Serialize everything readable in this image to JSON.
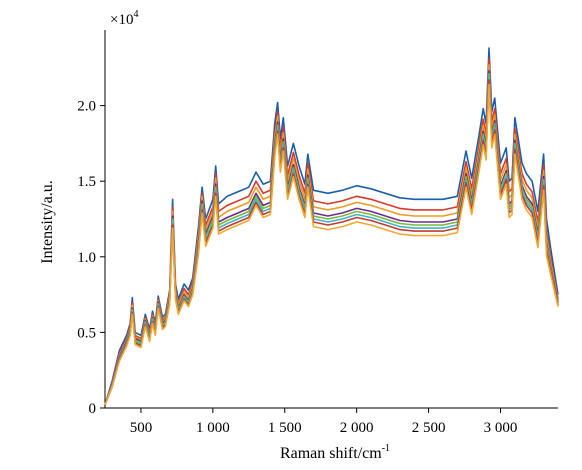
{
  "chart_data": {
    "type": "line",
    "title": "",
    "xlabel": "Raman shift/cm",
    "xlabel_sup": "-1",
    "ylabel": "Intensity/a.u.",
    "y_multiplier": "×10",
    "y_multiplier_exp": "4",
    "xlim": [
      250,
      3400
    ],
    "ylim": [
      0,
      2.5
    ],
    "x_ticks": [
      500,
      1000,
      1500,
      2000,
      2500,
      3000
    ],
    "x_tick_labels": [
      "500",
      "1 000",
      "1 500",
      "2 000",
      "2 500",
      "3 000"
    ],
    "y_ticks": [
      0,
      0.5,
      1.0,
      1.5,
      2.0
    ],
    "y_tick_labels": [
      "0",
      "0.5",
      "1.0",
      "1.5",
      "2.0"
    ],
    "grid": false,
    "legend": "none",
    "x": [
      250,
      300,
      350,
      400,
      425,
      440,
      460,
      500,
      530,
      560,
      580,
      600,
      620,
      650,
      670,
      700,
      720,
      740,
      760,
      800,
      830,
      860,
      900,
      925,
      950,
      1000,
      1020,
      1040,
      1100,
      1150,
      1200,
      1250,
      1300,
      1350,
      1400,
      1430,
      1450,
      1470,
      1490,
      1520,
      1560,
      1600,
      1640,
      1660,
      1700,
      1800,
      1900,
      2000,
      2100,
      2200,
      2300,
      2400,
      2500,
      2600,
      2700,
      2760,
      2800,
      2850,
      2880,
      2900,
      2920,
      2940,
      2960,
      3000,
      3040,
      3060,
      3080,
      3100,
      3150,
      3180,
      3220,
      3260,
      3300,
      3320,
      3350,
      3400
    ],
    "series": [
      {
        "color": "#1a5fae",
        "values": [
          0.02,
          0.18,
          0.38,
          0.48,
          0.56,
          0.73,
          0.5,
          0.48,
          0.62,
          0.52,
          0.64,
          0.56,
          0.74,
          0.6,
          0.62,
          0.78,
          1.38,
          0.82,
          0.72,
          0.82,
          0.78,
          0.86,
          1.2,
          1.46,
          1.25,
          1.38,
          1.6,
          1.35,
          1.4,
          1.42,
          1.44,
          1.46,
          1.56,
          1.48,
          1.5,
          1.88,
          2.02,
          1.78,
          1.92,
          1.6,
          1.75,
          1.6,
          1.48,
          1.68,
          1.44,
          1.42,
          1.44,
          1.47,
          1.45,
          1.42,
          1.39,
          1.38,
          1.38,
          1.38,
          1.4,
          1.7,
          1.52,
          1.8,
          1.98,
          1.88,
          2.38,
          1.96,
          2.05,
          1.62,
          1.72,
          1.5,
          1.52,
          1.92,
          1.62,
          1.55,
          1.5,
          1.3,
          1.68,
          1.25,
          1.05,
          0.75
        ]
      },
      {
        "color": "#d8392b",
        "values": [
          0.02,
          0.17,
          0.36,
          0.46,
          0.54,
          0.7,
          0.48,
          0.46,
          0.6,
          0.5,
          0.62,
          0.54,
          0.72,
          0.58,
          0.6,
          0.76,
          1.33,
          0.79,
          0.69,
          0.79,
          0.75,
          0.83,
          1.16,
          1.42,
          1.21,
          1.33,
          1.55,
          1.3,
          1.34,
          1.36,
          1.38,
          1.4,
          1.5,
          1.42,
          1.44,
          1.82,
          1.96,
          1.72,
          1.86,
          1.54,
          1.69,
          1.54,
          1.42,
          1.62,
          1.37,
          1.35,
          1.37,
          1.4,
          1.38,
          1.35,
          1.32,
          1.31,
          1.31,
          1.31,
          1.33,
          1.63,
          1.45,
          1.73,
          1.91,
          1.81,
          2.31,
          1.89,
          1.98,
          1.55,
          1.65,
          1.43,
          1.45,
          1.85,
          1.55,
          1.48,
          1.43,
          1.23,
          1.61,
          1.18,
          0.99,
          0.72
        ]
      },
      {
        "color": "#ee9a1f",
        "values": [
          0.02,
          0.16,
          0.35,
          0.45,
          0.53,
          0.68,
          0.47,
          0.45,
          0.59,
          0.49,
          0.61,
          0.53,
          0.71,
          0.57,
          0.59,
          0.75,
          1.3,
          0.78,
          0.68,
          0.77,
          0.73,
          0.81,
          1.13,
          1.4,
          1.18,
          1.3,
          1.52,
          1.26,
          1.3,
          1.32,
          1.34,
          1.36,
          1.46,
          1.38,
          1.4,
          1.78,
          1.93,
          1.68,
          1.82,
          1.5,
          1.65,
          1.5,
          1.38,
          1.58,
          1.33,
          1.31,
          1.33,
          1.36,
          1.34,
          1.31,
          1.28,
          1.27,
          1.27,
          1.27,
          1.29,
          1.59,
          1.41,
          1.69,
          1.87,
          1.77,
          2.27,
          1.85,
          1.94,
          1.51,
          1.61,
          1.39,
          1.41,
          1.81,
          1.51,
          1.44,
          1.39,
          1.19,
          1.57,
          1.14,
          0.96,
          0.71
        ]
      },
      {
        "color": "#6a2c91",
        "values": [
          0.02,
          0.16,
          0.34,
          0.44,
          0.52,
          0.66,
          0.46,
          0.44,
          0.58,
          0.48,
          0.6,
          0.52,
          0.7,
          0.56,
          0.58,
          0.73,
          1.27,
          0.76,
          0.66,
          0.75,
          0.71,
          0.79,
          1.1,
          1.37,
          1.15,
          1.27,
          1.48,
          1.23,
          1.26,
          1.28,
          1.3,
          1.32,
          1.42,
          1.34,
          1.36,
          1.74,
          1.89,
          1.64,
          1.78,
          1.46,
          1.61,
          1.46,
          1.34,
          1.54,
          1.29,
          1.27,
          1.29,
          1.32,
          1.3,
          1.27,
          1.24,
          1.23,
          1.23,
          1.23,
          1.25,
          1.55,
          1.37,
          1.65,
          1.83,
          1.73,
          2.23,
          1.81,
          1.9,
          1.47,
          1.57,
          1.35,
          1.37,
          1.77,
          1.47,
          1.4,
          1.35,
          1.15,
          1.53,
          1.1,
          0.93,
          0.7
        ]
      },
      {
        "color": "#7cb83a",
        "values": [
          0.02,
          0.15,
          0.33,
          0.43,
          0.51,
          0.65,
          0.45,
          0.43,
          0.57,
          0.47,
          0.59,
          0.51,
          0.69,
          0.55,
          0.57,
          0.72,
          1.25,
          0.75,
          0.65,
          0.74,
          0.7,
          0.78,
          1.08,
          1.35,
          1.13,
          1.25,
          1.46,
          1.21,
          1.24,
          1.26,
          1.28,
          1.3,
          1.4,
          1.32,
          1.34,
          1.72,
          1.87,
          1.62,
          1.76,
          1.44,
          1.59,
          1.44,
          1.32,
          1.52,
          1.27,
          1.25,
          1.27,
          1.3,
          1.28,
          1.25,
          1.22,
          1.21,
          1.21,
          1.21,
          1.23,
          1.53,
          1.35,
          1.63,
          1.81,
          1.71,
          2.21,
          1.79,
          1.88,
          1.45,
          1.55,
          1.33,
          1.35,
          1.75,
          1.45,
          1.38,
          1.33,
          1.13,
          1.51,
          1.08,
          0.92,
          0.69
        ]
      },
      {
        "color": "#3cb8c8",
        "values": [
          0.02,
          0.15,
          0.33,
          0.43,
          0.5,
          0.64,
          0.44,
          0.42,
          0.56,
          0.46,
          0.58,
          0.5,
          0.68,
          0.54,
          0.56,
          0.71,
          1.23,
          0.74,
          0.64,
          0.73,
          0.69,
          0.77,
          1.06,
          1.33,
          1.11,
          1.23,
          1.44,
          1.19,
          1.22,
          1.24,
          1.26,
          1.28,
          1.38,
          1.3,
          1.32,
          1.7,
          1.85,
          1.6,
          1.74,
          1.42,
          1.57,
          1.42,
          1.3,
          1.5,
          1.25,
          1.23,
          1.25,
          1.28,
          1.26,
          1.23,
          1.2,
          1.19,
          1.19,
          1.19,
          1.21,
          1.51,
          1.33,
          1.61,
          1.79,
          1.69,
          2.19,
          1.77,
          1.86,
          1.43,
          1.53,
          1.31,
          1.33,
          1.73,
          1.43,
          1.36,
          1.31,
          1.11,
          1.49,
          1.06,
          0.91,
          0.68
        ]
      },
      {
        "color": "#c23a30",
        "values": [
          0.02,
          0.14,
          0.32,
          0.42,
          0.49,
          0.63,
          0.43,
          0.41,
          0.55,
          0.45,
          0.57,
          0.49,
          0.67,
          0.53,
          0.55,
          0.7,
          1.21,
          0.73,
          0.63,
          0.72,
          0.68,
          0.76,
          1.04,
          1.31,
          1.09,
          1.21,
          1.42,
          1.17,
          1.2,
          1.22,
          1.24,
          1.26,
          1.36,
          1.28,
          1.3,
          1.68,
          1.83,
          1.58,
          1.72,
          1.4,
          1.55,
          1.4,
          1.28,
          1.48,
          1.23,
          1.21,
          1.23,
          1.26,
          1.24,
          1.21,
          1.18,
          1.17,
          1.17,
          1.17,
          1.19,
          1.49,
          1.31,
          1.59,
          1.77,
          1.67,
          2.17,
          1.75,
          1.84,
          1.41,
          1.51,
          1.29,
          1.31,
          1.71,
          1.41,
          1.34,
          1.29,
          1.09,
          1.47,
          1.04,
          0.9,
          0.68
        ]
      },
      {
        "color": "#f0a830",
        "values": [
          0.02,
          0.14,
          0.31,
          0.41,
          0.48,
          0.62,
          0.42,
          0.4,
          0.54,
          0.44,
          0.56,
          0.48,
          0.66,
          0.52,
          0.54,
          0.69,
          1.19,
          0.72,
          0.62,
          0.71,
          0.67,
          0.75,
          1.02,
          1.29,
          1.07,
          1.19,
          1.4,
          1.15,
          1.18,
          1.2,
          1.22,
          1.24,
          1.34,
          1.26,
          1.28,
          1.66,
          1.81,
          1.56,
          1.7,
          1.38,
          1.53,
          1.38,
          1.26,
          1.46,
          1.2,
          1.18,
          1.2,
          1.23,
          1.21,
          1.18,
          1.15,
          1.14,
          1.14,
          1.14,
          1.16,
          1.46,
          1.28,
          1.56,
          1.74,
          1.64,
          2.14,
          1.72,
          1.81,
          1.38,
          1.48,
          1.26,
          1.28,
          1.68,
          1.38,
          1.31,
          1.26,
          1.06,
          1.44,
          1.01,
          0.88,
          0.67
        ]
      }
    ]
  }
}
